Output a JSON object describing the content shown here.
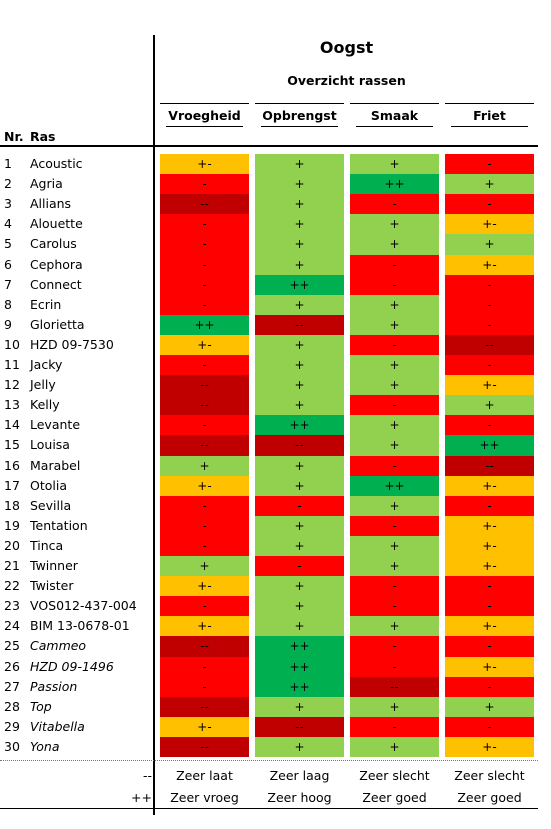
{
  "title": "Oogst",
  "subtitle": "Overzicht rassen",
  "headers": {
    "nr": "Nr.",
    "ras": "Ras",
    "columns": [
      "Vroegheid",
      "Opbrengst",
      "Smaak",
      "Friet"
    ]
  },
  "colors": {
    "++": "#00b050",
    "+": "#92d050",
    "+-": "#ffc000",
    "-": "#ff0000",
    "--": "#c00000"
  },
  "rows": [
    {
      "nr": "1",
      "name": "Acoustic",
      "italic": false,
      "ratings": [
        "+-",
        "+",
        "+",
        "-"
      ]
    },
    {
      "nr": "2",
      "name": "Agria",
      "italic": false,
      "ratings": [
        "-",
        "+",
        "++",
        "+"
      ]
    },
    {
      "nr": "3",
      "name": "Allians",
      "italic": false,
      "ratings": [
        "--",
        "+",
        "-",
        "-"
      ]
    },
    {
      "nr": "4",
      "name": "Alouette",
      "italic": false,
      "ratings": [
        "-",
        "+",
        "+",
        "+-"
      ]
    },
    {
      "nr": "5",
      "name": "Carolus",
      "italic": false,
      "ratings": [
        "-",
        "+",
        "+",
        "+"
      ]
    },
    {
      "nr": "6",
      "name": "Cephora",
      "italic": false,
      "ratings": [
        "-",
        "+",
        "-",
        "+-"
      ]
    },
    {
      "nr": "7",
      "name": "Connect",
      "italic": false,
      "ratings": [
        "-",
        "++",
        "-",
        "-"
      ]
    },
    {
      "nr": "8",
      "name": "Ecrin",
      "italic": false,
      "ratings": [
        "-",
        "+",
        "+",
        "-"
      ]
    },
    {
      "nr": "9",
      "name": "Glorietta",
      "italic": false,
      "ratings": [
        "++",
        "--",
        "+",
        "-"
      ]
    },
    {
      "nr": "10",
      "name": "HZD 09-7530",
      "italic": false,
      "ratings": [
        "+-",
        "+",
        "-",
        "--"
      ]
    },
    {
      "nr": "11",
      "name": "Jacky",
      "italic": false,
      "ratings": [
        "-",
        "+",
        "+",
        "-"
      ]
    },
    {
      "nr": "12",
      "name": "Jelly",
      "italic": false,
      "ratings": [
        "--",
        "+",
        "+",
        "+-"
      ]
    },
    {
      "nr": "13",
      "name": "Kelly",
      "italic": false,
      "ratings": [
        "--",
        "+",
        "-",
        "+"
      ]
    },
    {
      "nr": "14",
      "name": "Levante",
      "italic": false,
      "ratings": [
        "-",
        "++",
        "+",
        "-"
      ]
    },
    {
      "nr": "15",
      "name": "Louisa",
      "italic": false,
      "ratings": [
        "--",
        "--",
        "+",
        "++"
      ]
    },
    {
      "nr": "16",
      "name": "Marabel",
      "italic": false,
      "ratings": [
        "+",
        "+",
        "-",
        "--"
      ]
    },
    {
      "nr": "17",
      "name": "Otolia",
      "italic": false,
      "ratings": [
        "+-",
        "+",
        "++",
        "+-"
      ]
    },
    {
      "nr": "18",
      "name": "Sevilla",
      "italic": false,
      "ratings": [
        "-",
        "-",
        "+",
        "-"
      ]
    },
    {
      "nr": "19",
      "name": "Tentation",
      "italic": false,
      "ratings": [
        "-",
        "+",
        "-",
        "+-"
      ]
    },
    {
      "nr": "20",
      "name": "Tinca",
      "italic": false,
      "ratings": [
        "-",
        "+",
        "+",
        "+-"
      ]
    },
    {
      "nr": "21",
      "name": "Twinner",
      "italic": false,
      "ratings": [
        "+",
        "-",
        "+",
        "+-"
      ]
    },
    {
      "nr": "22",
      "name": "Twister",
      "italic": false,
      "ratings": [
        "+-",
        "+",
        "-",
        "-"
      ]
    },
    {
      "nr": "23",
      "name": "VOS012-437-004",
      "italic": false,
      "ratings": [
        "-",
        "+",
        "-",
        "-"
      ]
    },
    {
      "nr": "24",
      "name": "BIM 13-0678-01",
      "italic": false,
      "ratings": [
        "+-",
        "+",
        "+",
        "+-"
      ]
    },
    {
      "nr": "25",
      "name": "Cammeo",
      "italic": true,
      "ratings": [
        "--",
        "++",
        "-",
        "-"
      ]
    },
    {
      "nr": "26",
      "name": "HZD 09-1496",
      "italic": true,
      "ratings": [
        "-",
        "++",
        "-",
        "+-"
      ]
    },
    {
      "nr": "27",
      "name": "Passion",
      "italic": true,
      "ratings": [
        "-",
        "++",
        "--",
        "-"
      ]
    },
    {
      "nr": "28",
      "name": "Top",
      "italic": true,
      "ratings": [
        "--",
        "+",
        "+",
        "+"
      ]
    },
    {
      "nr": "29",
      "name": "Vitabella",
      "italic": true,
      "ratings": [
        "+-",
        "--",
        "-",
        "-"
      ]
    },
    {
      "nr": "30",
      "name": "Yona",
      "italic": true,
      "ratings": [
        "--",
        "+",
        "+",
        "+-"
      ]
    }
  ],
  "legend": [
    {
      "symbol": "--",
      "labels": [
        "Zeer laat",
        "Zeer laag",
        "Zeer slecht",
        "Zeer slecht"
      ]
    },
    {
      "symbol": "++",
      "labels": [
        "Zeer vroeg",
        "Zeer hoog",
        "Zeer goed",
        "Zeer goed"
      ]
    }
  ]
}
